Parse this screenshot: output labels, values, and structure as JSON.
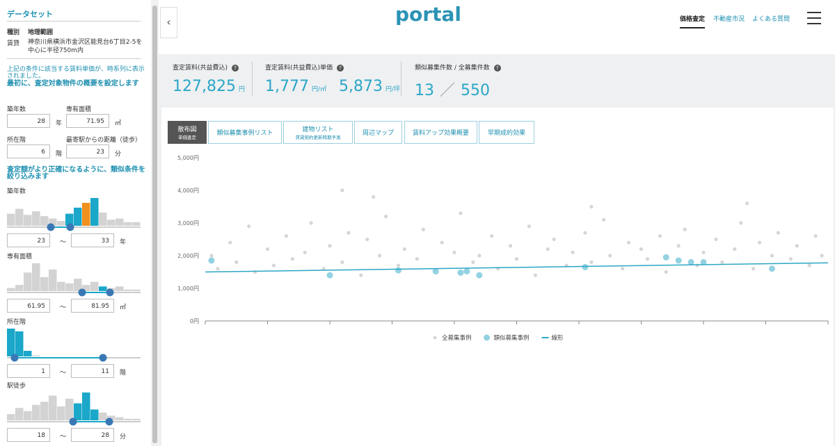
{
  "sidebar": {
    "title": "データセット",
    "table_header": [
      "種別",
      "地理範囲"
    ],
    "table_row": [
      "賃貸",
      "神奈川県横浜市金沢区能見台6丁目2-5を中心に半径750m内"
    ],
    "note": "上記の条件に該当する賃料単価が、時系列に表示されました。",
    "section1": "最初に、査定対象物件の概要を設定します",
    "fields": [
      {
        "label": "築年数",
        "value": "28",
        "unit": "年"
      },
      {
        "label": "専有面積",
        "value": "71.95",
        "unit": "㎡"
      },
      {
        "label": "所在階",
        "value": "6",
        "unit": "階"
      },
      {
        "label": "最寄駅からの距離（徒歩）",
        "value": "23",
        "unit": "分"
      }
    ],
    "section2": "査定額がより正確になるように、類似条件を絞り込みます",
    "filters": [
      {
        "label": "築年数",
        "min": "23",
        "sep": "～",
        "max": "33",
        "unit": "年",
        "values": [
          10,
          14,
          9,
          12,
          8,
          6,
          4,
          10,
          15,
          19,
          23,
          11,
          5,
          6,
          3,
          3
        ],
        "colors": [
          "#d3d3d3",
          "#d3d3d3",
          "#d3d3d3",
          "#d3d3d3",
          "#d3d3d3",
          "#d3d3d3",
          "#d3d3d3",
          "#1aa7c9",
          "#1aa7c9",
          "#f0901f",
          "#1aa7c9",
          "#d3d3d3",
          "#d3d3d3",
          "#d3d3d3",
          "#d3d3d3",
          "#d3d3d3"
        ]
      },
      {
        "label": "専有面積",
        "min": "61.95",
        "sep": "～",
        "max": "81.95",
        "unit": "㎡",
        "values": [
          2,
          4,
          12,
          18,
          9,
          14,
          6,
          5,
          8,
          4,
          6,
          3,
          2,
          3,
          1,
          1
        ],
        "colors": [
          "#d3d3d3",
          "#d3d3d3",
          "#d3d3d3",
          "#d3d3d3",
          "#d3d3d3",
          "#d3d3d3",
          "#d3d3d3",
          "#d3d3d3",
          "#d3d3d3",
          "#d3d3d3",
          "#d3d3d3",
          "#1aa7c9",
          "#d3d3d3",
          "#d3d3d3",
          "#d3d3d3",
          "#d3d3d3"
        ]
      },
      {
        "label": "所在階",
        "min": "1",
        "sep": "～",
        "max": "11",
        "unit": "階",
        "values": [
          30,
          27,
          6,
          1,
          0,
          0,
          0,
          0,
          0,
          0
        ],
        "colors": [
          "#1aa7c9",
          "#1aa7c9",
          "#1aa7c9",
          "#d3d3d3",
          "#d3d3d3",
          "#d3d3d3",
          "#d3d3d3",
          "#d3d3d3",
          "#d3d3d3",
          "#d3d3d3"
        ]
      },
      {
        "label": "駅徒歩",
        "min": "18",
        "sep": "～",
        "max": "28",
        "unit": "分",
        "values": [
          4,
          8,
          6,
          10,
          12,
          16,
          9,
          14,
          11,
          18,
          7,
          5,
          3,
          2,
          1,
          1
        ],
        "colors": [
          "#d3d3d3",
          "#d3d3d3",
          "#d3d3d3",
          "#d3d3d3",
          "#d3d3d3",
          "#d3d3d3",
          "#d3d3d3",
          "#d3d3d3",
          "#1aa7c9",
          "#1aa7c9",
          "#1aa7c9",
          "#d3d3d3",
          "#d3d3d3",
          "#d3d3d3",
          "#d3d3d3",
          "#d3d3d3"
        ]
      }
    ]
  },
  "header": {
    "logo": "portal",
    "nav": [
      "価格査定",
      "不動産市況",
      "よくある質問"
    ]
  },
  "stats": [
    {
      "label": "査定賃料(共益費込)",
      "value": "127,825",
      "unit": "円"
    },
    {
      "label": "査定賃料(共益費込)単価",
      "value": "1,777",
      "unit": "円/㎡",
      "value2": "5,873",
      "unit2": "円/坪"
    },
    {
      "label": "類似募集件数 / 全募集件数",
      "value": "13",
      "value2": "550"
    }
  ],
  "tabs": [
    {
      "label": "散布図",
      "sub": "単価査定"
    },
    {
      "label": "類似募集事例リスト"
    },
    {
      "label": "建物リスト",
      "sub": "賃貸契約更新時期予測"
    },
    {
      "label": "周辺マップ"
    },
    {
      "label": "賃料アップ効果概要"
    },
    {
      "label": "早期成約効果"
    }
  ],
  "chart_data": {
    "type": "scatter",
    "xlim": [
      0,
      100
    ],
    "xticks": [
      0,
      10,
      20,
      30,
      40,
      50,
      60,
      70,
      80,
      90,
      100
    ],
    "ylim": [
      0,
      5000
    ],
    "yticks": [
      {
        "value": 0,
        "label": "0円"
      },
      {
        "value": 1000,
        "label": "1,000円"
      },
      {
        "value": 2000,
        "label": "2,000円"
      },
      {
        "value": 3000,
        "label": "3,000円"
      },
      {
        "value": 4000,
        "label": "4,000円"
      },
      {
        "value": 5000,
        "label": "5,000円"
      }
    ],
    "grid": false,
    "legend": "bottom",
    "series": [
      {
        "name": "全募集事例",
        "color": "#d6d6d6",
        "x": [
          1,
          2,
          4,
          5,
          7,
          8,
          10,
          11,
          13,
          14,
          16,
          17,
          19,
          20,
          22,
          23,
          25,
          26,
          28,
          29,
          31,
          32,
          34,
          35,
          37,
          38,
          40,
          41,
          43,
          44,
          46,
          47,
          49,
          50,
          52,
          53,
          55,
          56,
          58,
          59,
          61,
          62,
          64,
          65,
          67,
          68,
          70,
          71,
          73,
          74,
          76,
          77,
          79,
          80,
          82,
          83,
          85,
          86,
          88,
          89,
          91,
          92,
          94,
          95,
          97,
          98,
          99,
          22,
          27,
          62,
          87
        ],
        "values": [
          2000,
          1600,
          2400,
          1800,
          2900,
          1500,
          2200,
          1700,
          2600,
          1900,
          2100,
          3000,
          1600,
          2300,
          1800,
          2700,
          1400,
          2500,
          2000,
          3200,
          1700,
          2200,
          1900,
          2800,
          1500,
          2400,
          2100,
          3300,
          1800,
          2000,
          2600,
          1600,
          2300,
          1900,
          2900,
          1400,
          2200,
          2500,
          1700,
          2100,
          2700,
          1800,
          3100,
          2000,
          1600,
          2400,
          2200,
          1900,
          2600,
          1500,
          2300,
          2800,
          1700,
          2100,
          2500,
          1800,
          2200,
          3000,
          1600,
          2400,
          2000,
          2700,
          1900,
          2300,
          1700,
          2600,
          2000,
          4000,
          3800,
          3500,
          3600
        ]
      },
      {
        "name": "類似募集事例",
        "color": "#93d2e2",
        "x": [
          1,
          20,
          31,
          37,
          41,
          42,
          44,
          61,
          74,
          76,
          78,
          80,
          91
        ],
        "values": [
          1850,
          1400,
          1550,
          1520,
          1480,
          1520,
          1400,
          1650,
          1950,
          1850,
          1800,
          1800,
          1600
        ]
      },
      {
        "name": "線形",
        "color": "#2ba6c6",
        "type": "line",
        "x": [
          0,
          100
        ],
        "values": [
          1500,
          1780
        ]
      }
    ]
  }
}
